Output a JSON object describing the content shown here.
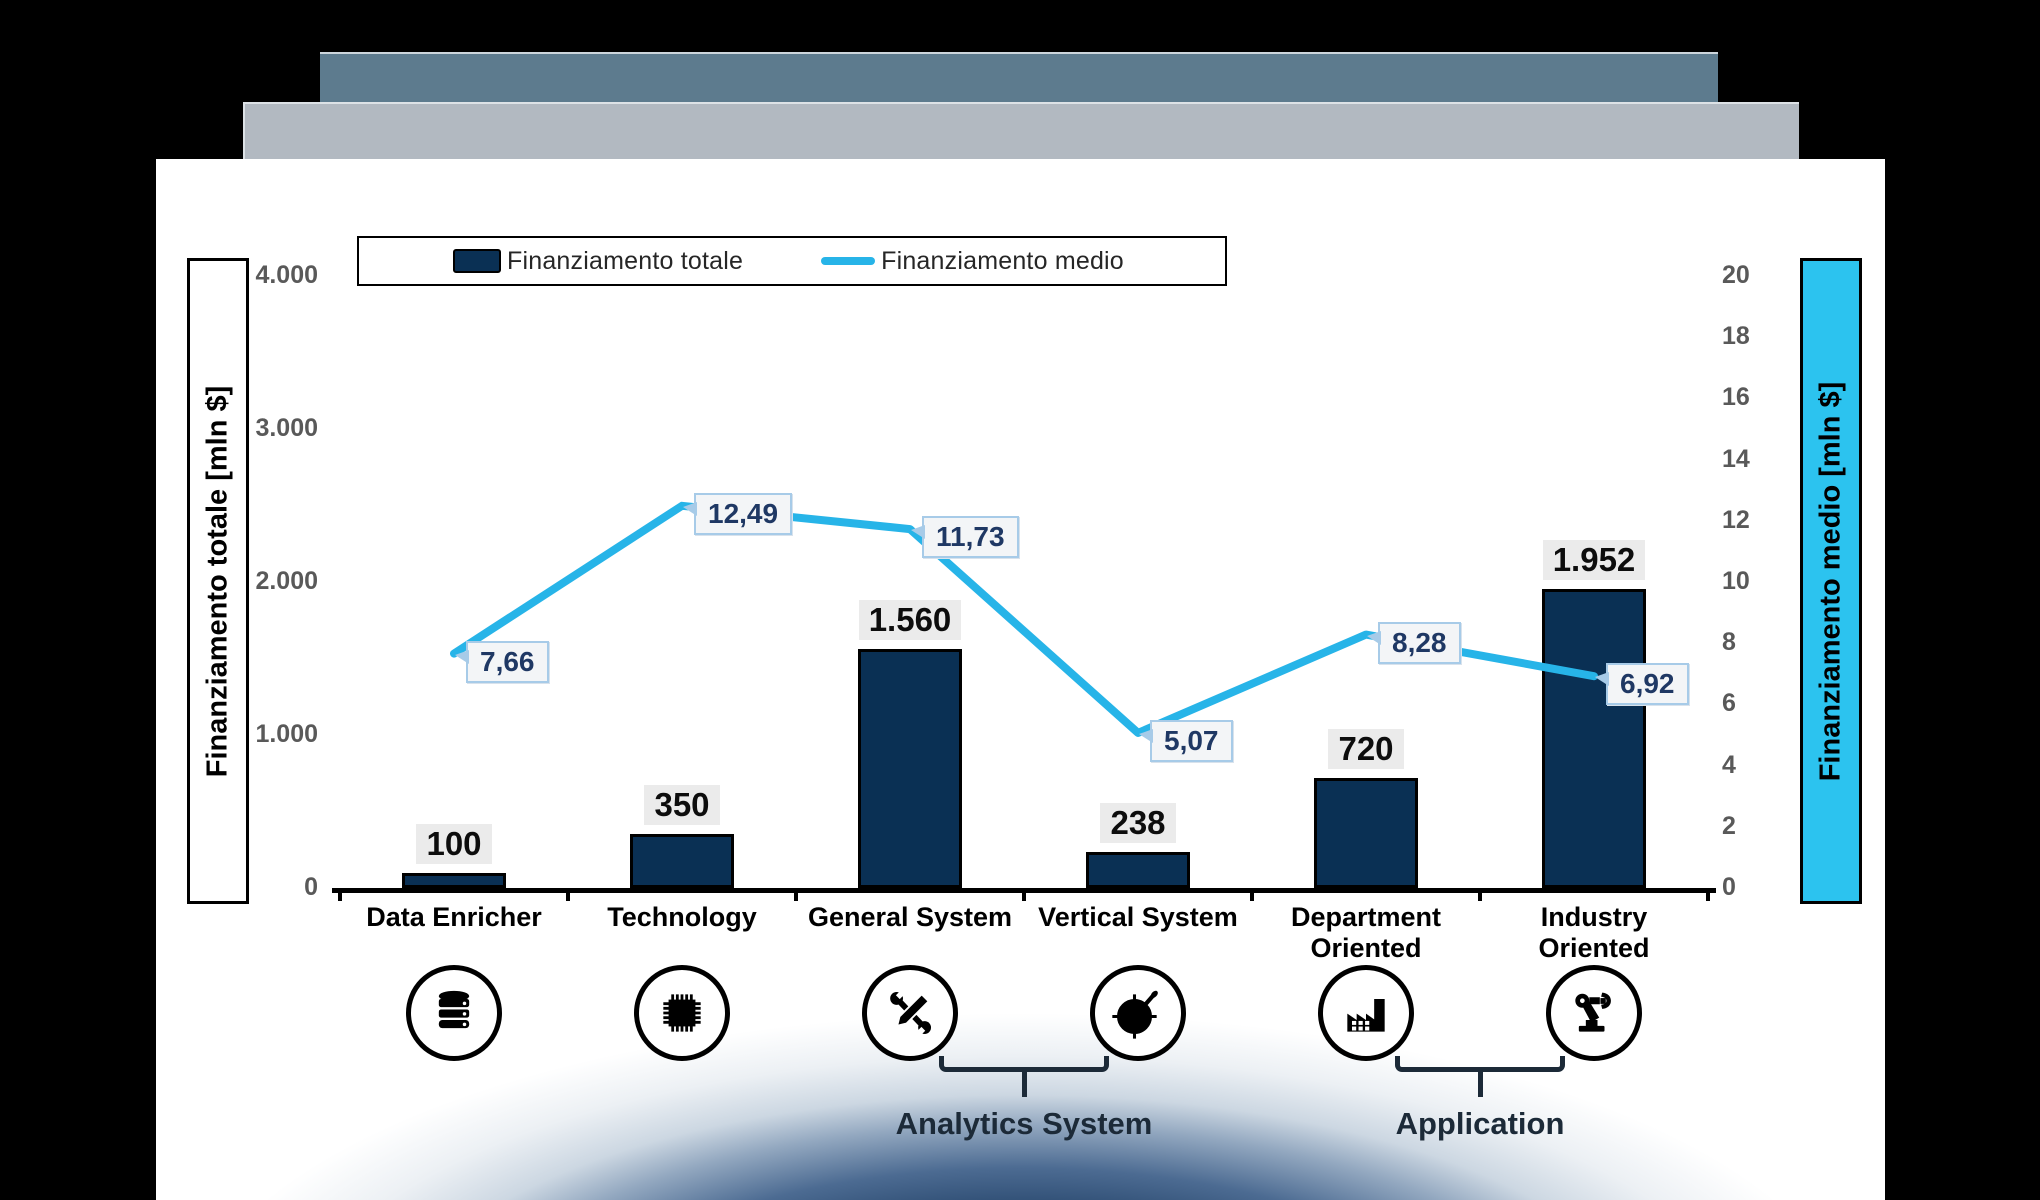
{
  "window": {
    "background": "#000000"
  },
  "colors": {
    "bar_fill": "#0a3054",
    "bar_border": "#000000",
    "line": "#27b4e8",
    "right_axis_box": "#2cc3ef",
    "tick_text": "#595959",
    "callout_text": "#1f3864",
    "callout_border": "#a7cbe8",
    "callout_bg": "#f3f5f7",
    "bar_label_bg": "#ebebeb",
    "stack_top_bar": "#5d7b8e",
    "stack_middle_bar": "#b2b9c1",
    "group_text": "#1c2a38"
  },
  "legend": {
    "total_label": "Finanziamento totale",
    "medio_label": "Finanziamento medio"
  },
  "left_axis": {
    "title": "Finanziamento totale [mln $]",
    "ticks": [
      "4.000",
      "3.000",
      "2.000",
      "1.000",
      "0"
    ]
  },
  "right_axis": {
    "title": "Finanziamento medio [mln $]",
    "ticks": [
      "20",
      "18",
      "16",
      "14",
      "12",
      "10",
      "8",
      "6",
      "4",
      "2",
      "0"
    ]
  },
  "chart_data": {
    "type": "bar",
    "subtype": "combo bar + line, dual axis",
    "categories": [
      "Data Enricher",
      "Technology",
      "General System",
      "Vertical System",
      "Department Oriented",
      "Industry Oriented"
    ],
    "category_lines": [
      [
        "Data Enricher"
      ],
      [
        "Technology"
      ],
      [
        "General System"
      ],
      [
        "Vertical System"
      ],
      [
        "Department",
        "Oriented"
      ],
      [
        "Industry",
        "Oriented"
      ]
    ],
    "series": [
      {
        "name": "Finanziamento totale",
        "type": "bar",
        "axis": "left",
        "values": [
          100,
          350,
          1560,
          238,
          720,
          1952
        ],
        "labels": [
          "100",
          "350",
          "1.560",
          "238",
          "720",
          "1.952"
        ]
      },
      {
        "name": "Finanziamento medio",
        "type": "line",
        "axis": "right",
        "values": [
          7.66,
          12.49,
          11.73,
          5.07,
          8.28,
          6.92
        ],
        "labels": [
          "7,66",
          "12,49",
          "11,73",
          "5,07",
          "8,28",
          "6,92"
        ]
      }
    ],
    "left_ylim": [
      0,
      4000
    ],
    "right_ylim": [
      0,
      20
    ],
    "grid": false,
    "legend_position": "top"
  },
  "icons": [
    "database-icon",
    "chip-icon",
    "tools-icon",
    "target-icon",
    "factory-icon",
    "robot-arm-icon"
  ],
  "groups": [
    {
      "label": "Analytics System",
      "from": 2,
      "to": 3
    },
    {
      "label": "Application",
      "from": 4,
      "to": 5
    }
  ]
}
